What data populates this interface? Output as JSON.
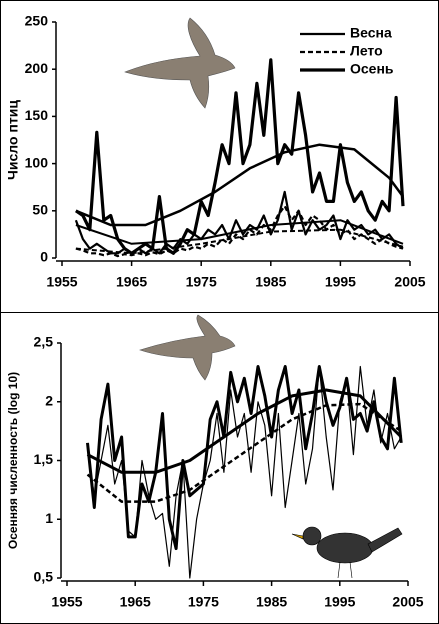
{
  "chart_data": [
    {
      "type": "line",
      "ylabel": "Число птиц",
      "xlim": [
        1955,
        2005
      ],
      "xticks": [
        1955,
        1965,
        1975,
        1985,
        1995,
        2005
      ],
      "ylim": [
        0,
        250
      ],
      "yticks": [
        0,
        50,
        100,
        150,
        200,
        250
      ],
      "legend": "top-right",
      "x": [
        1957,
        1958,
        1959,
        1960,
        1961,
        1962,
        1963,
        1964,
        1965,
        1966,
        1967,
        1968,
        1969,
        1970,
        1971,
        1972,
        1973,
        1974,
        1975,
        1976,
        1977,
        1978,
        1979,
        1980,
        1981,
        1982,
        1983,
        1984,
        1985,
        1986,
        1987,
        1988,
        1989,
        1990,
        1991,
        1992,
        1993,
        1994,
        1995,
        1996,
        1997,
        1998,
        1999,
        2000,
        2001,
        2002,
        2003,
        2004
      ],
      "series": [
        {
          "name": "Весна",
          "color": "#000000",
          "width": 2.2,
          "dash": false,
          "values": [
            40,
            20,
            10,
            15,
            10,
            5,
            5,
            10,
            5,
            10,
            5,
            10,
            5,
            15,
            10,
            20,
            15,
            25,
            20,
            30,
            25,
            35,
            20,
            40,
            25,
            35,
            30,
            45,
            25,
            40,
            70,
            30,
            50,
            25,
            40,
            30,
            35,
            45,
            20,
            40,
            30,
            35,
            25,
            30,
            20,
            25,
            15,
            10
          ]
        },
        {
          "name": "Лето",
          "color": "#000000",
          "width": 2.2,
          "dash": true,
          "values": [
            10,
            8,
            5,
            5,
            3,
            5,
            2,
            4,
            3,
            5,
            3,
            6,
            4,
            8,
            5,
            10,
            8,
            12,
            10,
            15,
            12,
            20,
            15,
            25,
            20,
            30,
            25,
            35,
            30,
            45,
            55,
            40,
            50,
            35,
            45,
            40,
            30,
            35,
            25,
            30,
            20,
            25,
            20,
            15,
            20,
            15,
            12,
            10
          ]
        },
        {
          "name": "Осень",
          "color": "#000000",
          "width": 3.2,
          "dash": false,
          "values": [
            50,
            45,
            30,
            133,
            40,
            45,
            20,
            10,
            5,
            10,
            15,
            10,
            65,
            10,
            5,
            15,
            30,
            25,
            60,
            45,
            80,
            120,
            100,
            175,
            100,
            120,
            185,
            130,
            210,
            100,
            120,
            110,
            175,
            130,
            70,
            90,
            60,
            60,
            120,
            80,
            60,
            70,
            50,
            40,
            60,
            50,
            170,
            55
          ]
        }
      ],
      "trends": [
        {
          "color": "#000000",
          "width": 2.5,
          "dash": false,
          "x": [
            1957,
            1962,
            1967,
            1972,
            1977,
            1982,
            1987,
            1992,
            1997,
            2002,
            2004
          ],
          "values": [
            50,
            35,
            35,
            50,
            70,
            95,
            112,
            120,
            115,
            85,
            65
          ]
        },
        {
          "color": "#000000",
          "width": 2,
          "dash": false,
          "x": [
            1957,
            1965,
            1975,
            1985,
            1995,
            2004
          ],
          "values": [
            35,
            15,
            20,
            35,
            40,
            15
          ]
        },
        {
          "color": "#000000",
          "width": 2,
          "dash": true,
          "x": [
            1957,
            1965,
            1975,
            1985,
            1995,
            2004
          ],
          "values": [
            10,
            5,
            15,
            28,
            30,
            12
          ]
        }
      ]
    },
    {
      "type": "line",
      "ylabel": "Осенняя численность (log 10)",
      "xlim": [
        1955,
        2005
      ],
      "xticks": [
        1955,
        1965,
        1975,
        1985,
        1995,
        2005
      ],
      "ylim": [
        0.5,
        2.5
      ],
      "yticks": [
        {
          "value": 0.5,
          "label": "0,5"
        },
        1,
        {
          "value": 1.5,
          "label": "1,5"
        },
        2,
        {
          "value": 2.5,
          "label": "2,5"
        }
      ],
      "x": [
        1958,
        1959,
        1960,
        1961,
        1962,
        1963,
        1964,
        1965,
        1966,
        1967,
        1968,
        1969,
        1970,
        1971,
        1972,
        1973,
        1974,
        1975,
        1976,
        1977,
        1978,
        1979,
        1980,
        1981,
        1982,
        1983,
        1984,
        1985,
        1986,
        1987,
        1988,
        1989,
        1990,
        1991,
        1992,
        1993,
        1994,
        1995,
        1996,
        1997,
        1998,
        1999,
        2000,
        2001,
        2002,
        2003,
        2004
      ],
      "series": [
        {
          "color": "#000000",
          "width": 3,
          "dash": false,
          "values": [
            1.65,
            1.1,
            1.85,
            2.15,
            1.5,
            1.7,
            0.85,
            0.85,
            1.3,
            1.15,
            1.4,
            1.9,
            1.0,
            0.75,
            1.5,
            1.2,
            1.25,
            1.3,
            1.85,
            2.0,
            1.7,
            2.25,
            2.0,
            2.2,
            1.9,
            2.3,
            2.05,
            1.7,
            2.1,
            2.3,
            1.9,
            2.1,
            1.6,
            1.9,
            2.3,
            2.0,
            1.8,
            1.95,
            2.2,
            1.85,
            1.9,
            1.75,
            2.0,
            1.7,
            1.6,
            2.2,
            1.65
          ]
        },
        {
          "color": "#000000",
          "width": 1.2,
          "dash": false,
          "values": [
            1.6,
            1.2,
            1.5,
            1.8,
            1.3,
            1.5,
            0.9,
            0.85,
            1.5,
            1.2,
            1.0,
            1.05,
            0.6,
            1.2,
            1.5,
            0.5,
            1.0,
            1.3,
            1.5,
            1.9,
            1.4,
            2.1,
            1.7,
            1.9,
            1.4,
            2.0,
            1.8,
            1.2,
            1.9,
            1.1,
            1.5,
            1.9,
            1.3,
            1.6,
            2.3,
            1.7,
            1.25,
            2.0,
            2.2,
            1.55,
            2.3,
            1.8,
            2.1,
            1.65,
            1.9,
            1.6,
            1.7
          ]
        }
      ],
      "trends": [
        {
          "color": "#000000",
          "width": 3,
          "dash": false,
          "x": [
            1958,
            1963,
            1968,
            1973,
            1978,
            1983,
            1988,
            1993,
            1998,
            2004
          ],
          "values": [
            1.55,
            1.4,
            1.4,
            1.5,
            1.7,
            1.9,
            2.05,
            2.1,
            2.05,
            1.7
          ]
        },
        {
          "color": "#000000",
          "width": 2.5,
          "dash": true,
          "x": [
            1958,
            1963,
            1968,
            1973,
            1978,
            1983,
            1988,
            1993,
            1998,
            2004
          ],
          "values": [
            1.38,
            1.15,
            1.15,
            1.25,
            1.45,
            1.65,
            1.85,
            1.97,
            1.98,
            1.75
          ]
        }
      ]
    }
  ]
}
